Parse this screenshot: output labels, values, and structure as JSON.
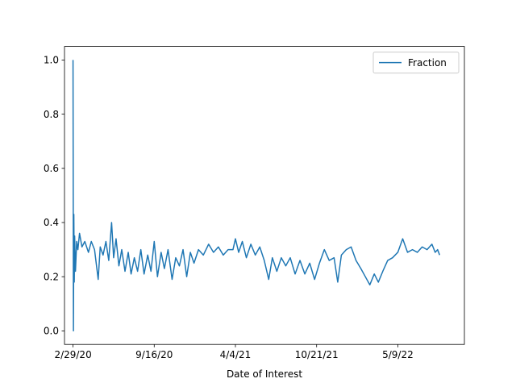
{
  "chart_data": {
    "type": "line",
    "title": "",
    "xlabel": "Date of Interest",
    "ylabel": "",
    "x_type": "date",
    "xlim": [
      "2020-02-08",
      "2022-10-20"
    ],
    "ylim": [
      -0.05,
      1.05
    ],
    "x_ticks": [
      {
        "date": "2020-02-29",
        "label": "2/29/20"
      },
      {
        "date": "2020-09-16",
        "label": "9/16/20"
      },
      {
        "date": "2021-04-04",
        "label": "4/4/21"
      },
      {
        "date": "2021-10-21",
        "label": "10/21/21"
      },
      {
        "date": "2022-05-09",
        "label": "5/9/22"
      }
    ],
    "y_ticks": [
      {
        "value": 0.0,
        "label": "0.0"
      },
      {
        "value": 0.2,
        "label": "0.2"
      },
      {
        "value": 0.4,
        "label": "0.4"
      },
      {
        "value": 0.6,
        "label": "0.6"
      },
      {
        "value": 0.8,
        "label": "0.8"
      },
      {
        "value": 1.0,
        "label": "1.0"
      }
    ],
    "grid": false,
    "legend": {
      "placement": "top-right"
    },
    "series": [
      {
        "name": "Fraction",
        "color": "#1f77b4",
        "points": [
          [
            "2020-02-29",
            1.0
          ],
          [
            "2020-03-01",
            0.0
          ],
          [
            "2020-03-02",
            0.43
          ],
          [
            "2020-03-03",
            0.18
          ],
          [
            "2020-03-04",
            0.35
          ],
          [
            "2020-03-06",
            0.22
          ],
          [
            "2020-03-09",
            0.33
          ],
          [
            "2020-03-12",
            0.3
          ],
          [
            "2020-03-16",
            0.36
          ],
          [
            "2020-03-22",
            0.31
          ],
          [
            "2020-03-29",
            0.33
          ],
          [
            "2020-04-07",
            0.29
          ],
          [
            "2020-04-14",
            0.33
          ],
          [
            "2020-04-22",
            0.3
          ],
          [
            "2020-05-01",
            0.19
          ],
          [
            "2020-05-06",
            0.31
          ],
          [
            "2020-05-13",
            0.28
          ],
          [
            "2020-05-20",
            0.33
          ],
          [
            "2020-05-27",
            0.26
          ],
          [
            "2020-06-03",
            0.4
          ],
          [
            "2020-06-08",
            0.27
          ],
          [
            "2020-06-14",
            0.34
          ],
          [
            "2020-06-21",
            0.24
          ],
          [
            "2020-06-28",
            0.3
          ],
          [
            "2020-07-06",
            0.22
          ],
          [
            "2020-07-14",
            0.29
          ],
          [
            "2020-07-21",
            0.21
          ],
          [
            "2020-07-29",
            0.27
          ],
          [
            "2020-08-06",
            0.22
          ],
          [
            "2020-08-14",
            0.3
          ],
          [
            "2020-08-22",
            0.21
          ],
          [
            "2020-08-31",
            0.28
          ],
          [
            "2020-09-08",
            0.22
          ],
          [
            "2020-09-16",
            0.33
          ],
          [
            "2020-09-24",
            0.2
          ],
          [
            "2020-10-03",
            0.29
          ],
          [
            "2020-10-11",
            0.23
          ],
          [
            "2020-10-20",
            0.3
          ],
          [
            "2020-10-30",
            0.19
          ],
          [
            "2020-11-08",
            0.27
          ],
          [
            "2020-11-17",
            0.24
          ],
          [
            "2020-11-26",
            0.3
          ],
          [
            "2020-12-05",
            0.2
          ],
          [
            "2020-12-14",
            0.29
          ],
          [
            "2020-12-23",
            0.25
          ],
          [
            "2021-01-03",
            0.3
          ],
          [
            "2021-01-15",
            0.28
          ],
          [
            "2021-01-28",
            0.32
          ],
          [
            "2021-02-09",
            0.29
          ],
          [
            "2021-02-21",
            0.31
          ],
          [
            "2021-03-05",
            0.28
          ],
          [
            "2021-03-17",
            0.3
          ],
          [
            "2021-03-29",
            0.3
          ],
          [
            "2021-04-04",
            0.34
          ],
          [
            "2021-04-12",
            0.29
          ],
          [
            "2021-04-21",
            0.33
          ],
          [
            "2021-05-01",
            0.27
          ],
          [
            "2021-05-12",
            0.32
          ],
          [
            "2021-05-23",
            0.28
          ],
          [
            "2021-06-03",
            0.31
          ],
          [
            "2021-06-14",
            0.26
          ],
          [
            "2021-06-25",
            0.19
          ],
          [
            "2021-07-04",
            0.27
          ],
          [
            "2021-07-15",
            0.22
          ],
          [
            "2021-07-26",
            0.27
          ],
          [
            "2021-08-06",
            0.24
          ],
          [
            "2021-08-17",
            0.27
          ],
          [
            "2021-08-29",
            0.21
          ],
          [
            "2021-09-10",
            0.26
          ],
          [
            "2021-09-22",
            0.21
          ],
          [
            "2021-10-04",
            0.25
          ],
          [
            "2021-10-16",
            0.19
          ],
          [
            "2021-10-28",
            0.25
          ],
          [
            "2021-11-09",
            0.3
          ],
          [
            "2021-11-21",
            0.26
          ],
          [
            "2021-12-03",
            0.27
          ],
          [
            "2021-12-12",
            0.18
          ],
          [
            "2021-12-21",
            0.28
          ],
          [
            "2022-01-02",
            0.3
          ],
          [
            "2022-01-14",
            0.31
          ],
          [
            "2022-01-26",
            0.26
          ],
          [
            "2022-02-07",
            0.23
          ],
          [
            "2022-02-18",
            0.2
          ],
          [
            "2022-03-01",
            0.17
          ],
          [
            "2022-03-12",
            0.21
          ],
          [
            "2022-03-22",
            0.18
          ],
          [
            "2022-04-02",
            0.22
          ],
          [
            "2022-04-14",
            0.26
          ],
          [
            "2022-04-26",
            0.27
          ],
          [
            "2022-05-09",
            0.29
          ],
          [
            "2022-05-21",
            0.34
          ],
          [
            "2022-06-02",
            0.29
          ],
          [
            "2022-06-14",
            0.3
          ],
          [
            "2022-06-26",
            0.29
          ],
          [
            "2022-07-08",
            0.31
          ],
          [
            "2022-07-20",
            0.3
          ],
          [
            "2022-08-01",
            0.32
          ],
          [
            "2022-08-09",
            0.29
          ],
          [
            "2022-08-15",
            0.3
          ],
          [
            "2022-08-20",
            0.28
          ]
        ]
      }
    ]
  }
}
